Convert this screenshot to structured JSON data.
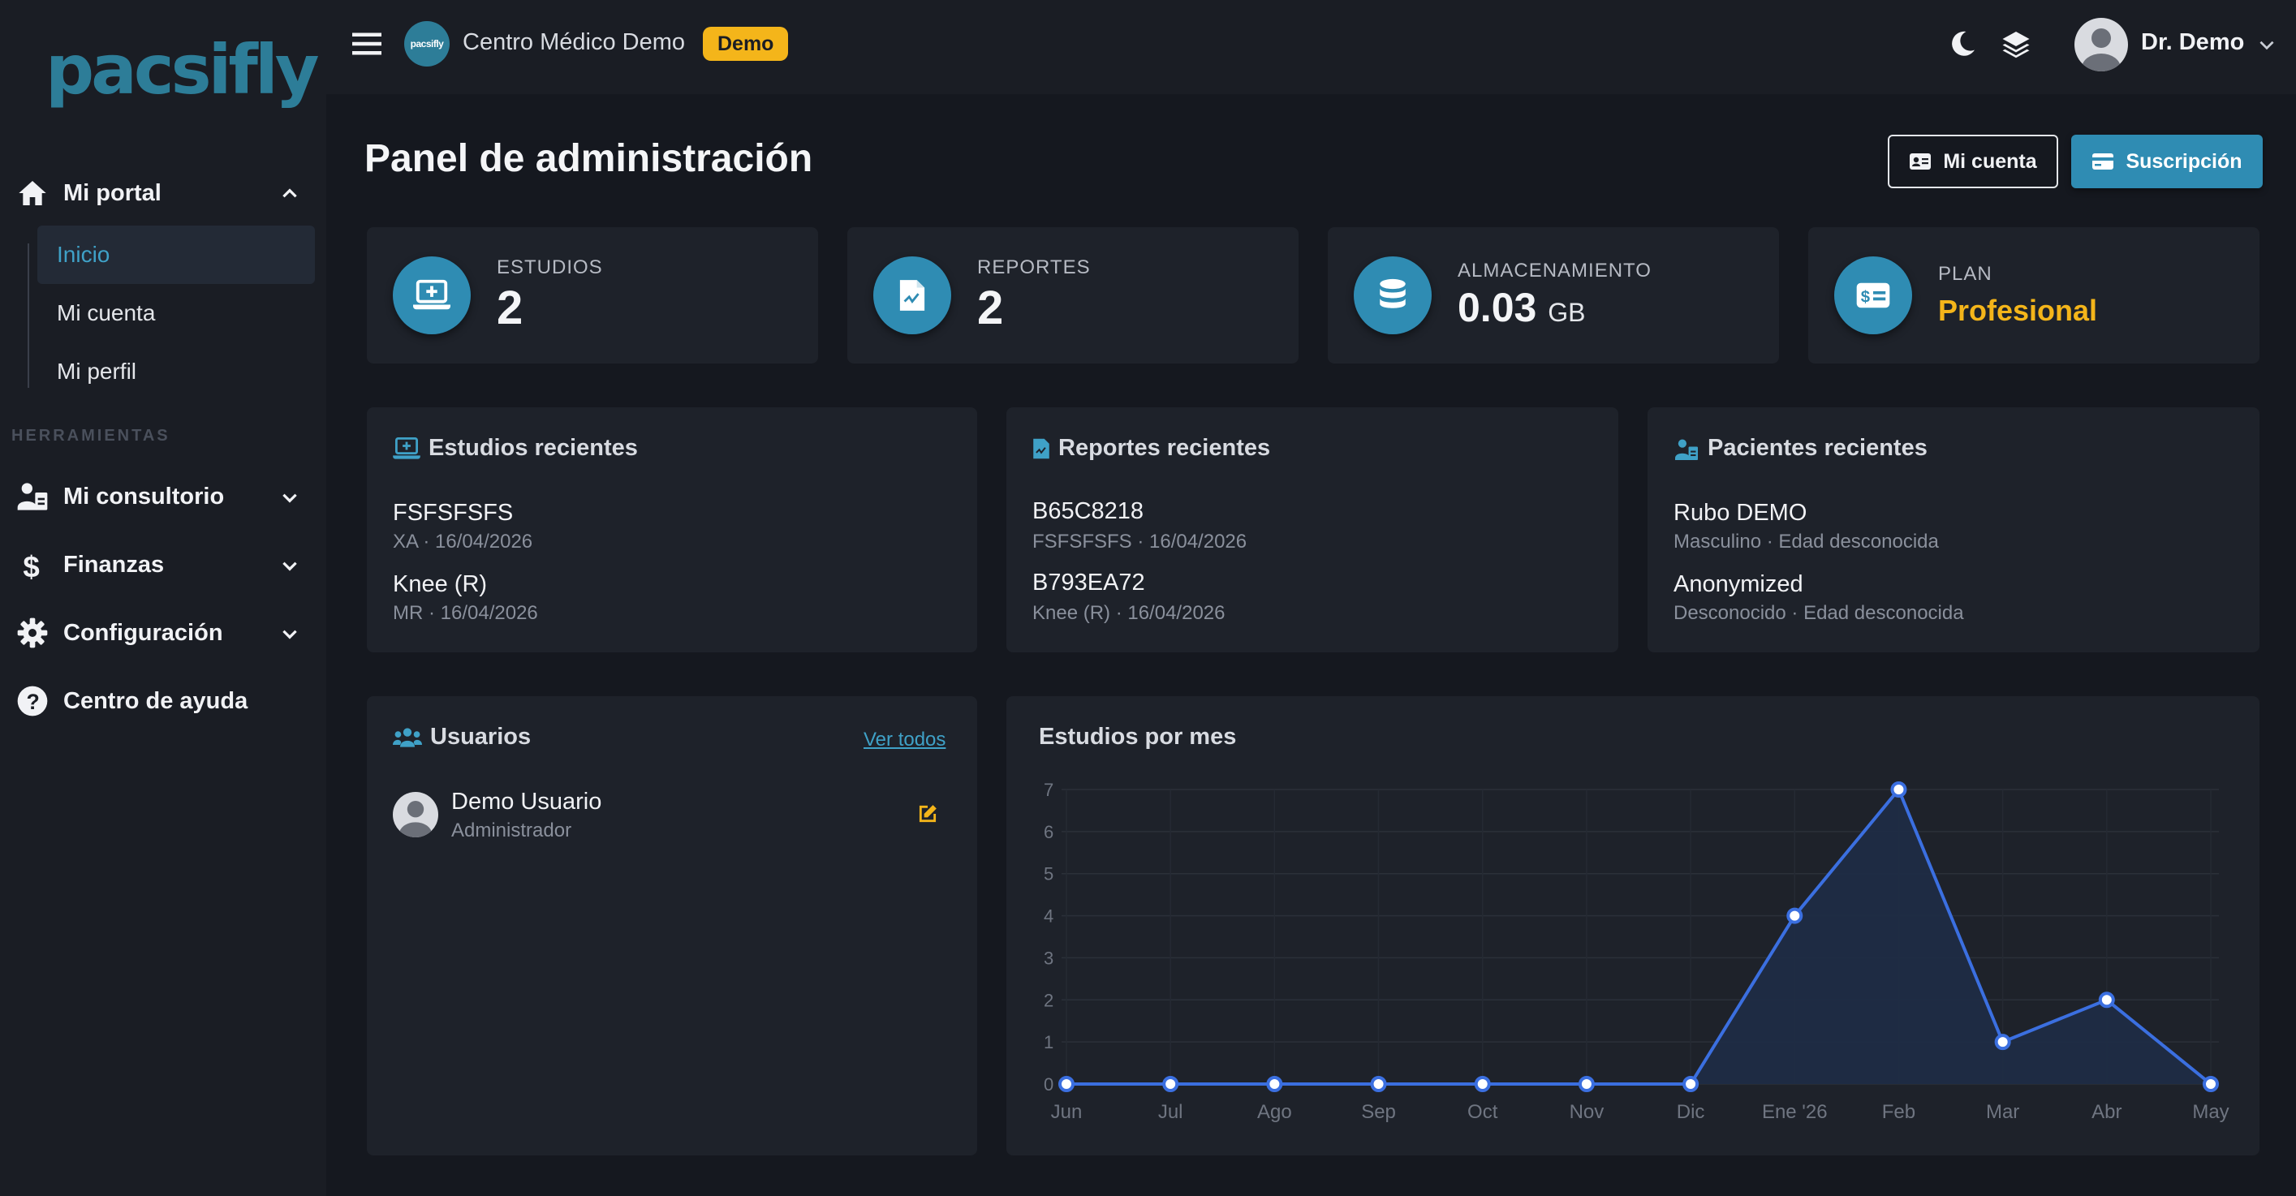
{
  "app": {
    "logo": "pacsifly",
    "org_name": "Centro Médico Demo",
    "org_avatar_text": "pacsifly",
    "badge": "Demo",
    "user_name": "Dr. Demo",
    "icons": {
      "menu": "hamburger-icon",
      "theme": "moon-icon",
      "layers": "layers-icon",
      "user_chevron": "chevron-down-icon"
    }
  },
  "sidebar": {
    "portal": {
      "label": "Mi portal",
      "expanded": true
    },
    "sub_items": [
      {
        "label": "Inicio",
        "active": true
      },
      {
        "label": "Mi cuenta",
        "active": false
      },
      {
        "label": "Mi perfil",
        "active": false
      }
    ],
    "section_label": "HERRAMIENTAS",
    "groups": [
      {
        "label": "Mi consultorio",
        "icon": "user-clipboard-icon"
      },
      {
        "label": "Finanzas",
        "icon": "dollar-icon"
      },
      {
        "label": "Configuración",
        "icon": "gear-icon"
      },
      {
        "label": "Centro de ayuda",
        "icon": "help-circle-icon"
      }
    ]
  },
  "page": {
    "title": "Panel de administración",
    "btn_account": "Mi cuenta",
    "btn_subscription": "Suscripción"
  },
  "stats": [
    {
      "label": "ESTUDIOS",
      "value": "2",
      "icon": "laptop-plus-icon"
    },
    {
      "label": "REPORTES",
      "value": "2",
      "icon": "file-report-icon"
    },
    {
      "label": "ALMACENAMIENTO",
      "value": "0.03",
      "unit": "GB",
      "icon": "database-icon"
    },
    {
      "label": "PLAN",
      "value": "Profesional",
      "icon": "money-card-icon"
    }
  ],
  "colors": {
    "accent": "#2f8cb3",
    "plan": "#f4b51a",
    "badge": "#f4b51a",
    "chart_line": "#3b6fe0"
  },
  "recent_studies": {
    "title": "Estudios recientes",
    "items": [
      {
        "name": "FSFSFSFS",
        "meta": "XA · 16/04/2026"
      },
      {
        "name": "Knee (R)",
        "meta": "MR · 16/04/2026"
      }
    ]
  },
  "recent_reports": {
    "title": "Reportes recientes",
    "items": [
      {
        "name": "B65C8218",
        "meta": "FSFSFSFS · 16/04/2026"
      },
      {
        "name": "B793EA72",
        "meta": "Knee (R) · 16/04/2026"
      }
    ]
  },
  "recent_patients": {
    "title": "Pacientes recientes",
    "items": [
      {
        "name": "Rubo DEMO",
        "meta": "Masculino · Edad desconocida"
      },
      {
        "name": "Anonymized",
        "meta": "Desconocido · Edad desconocida"
      }
    ]
  },
  "users": {
    "title": "Usuarios",
    "view_all": "Ver todos",
    "items": [
      {
        "name": "Demo Usuario",
        "role": "Administrador"
      }
    ]
  },
  "chart_data": {
    "type": "area",
    "title": "Estudios por mes",
    "categories": [
      "Jun",
      "Jul",
      "Ago",
      "Sep",
      "Oct",
      "Nov",
      "Dic",
      "Ene '26",
      "Feb",
      "Mar",
      "Abr",
      "May"
    ],
    "values": [
      0,
      0,
      0,
      0,
      0,
      0,
      0,
      4,
      7,
      1,
      2,
      0
    ],
    "ylim": [
      0,
      7
    ],
    "yticks": [
      0,
      1,
      2,
      3,
      4,
      5,
      6,
      7
    ],
    "grid": true
  }
}
